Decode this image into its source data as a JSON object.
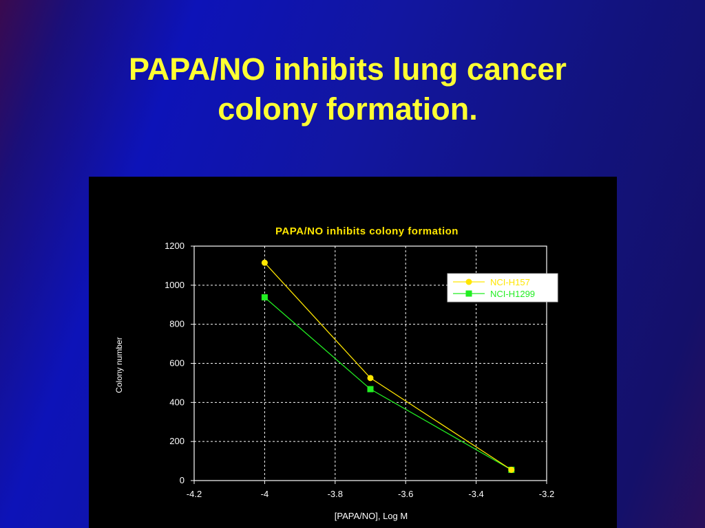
{
  "slide": {
    "title_line1": "PAPA/NO inhibits lung cancer",
    "title_line2": "colony formation."
  },
  "colors": {
    "title": "#ffff33",
    "chart_background": "#000000",
    "series_h157": "#ffe600",
    "series_h1299": "#22ee22",
    "axis_text": "#ffffff"
  },
  "chart_data": {
    "type": "line",
    "title": "PAPA/NO inhibits colony formation",
    "xlabel": "[PAPA/NO], Log M",
    "ylabel": "Colony number",
    "xlim": [
      -4.2,
      -3.2
    ],
    "ylim": [
      0,
      1200
    ],
    "xticks": [
      "-4.2",
      "-4",
      "-3.8",
      "-3.6",
      "-3.4",
      "-3.2"
    ],
    "yticks": [
      "0",
      "200",
      "400",
      "600",
      "800",
      "1000",
      "1200"
    ],
    "grid": true,
    "legend_position": "top-right",
    "series": [
      {
        "name": "NCI-H157",
        "marker": "circle",
        "x": [
          -4,
          -3.7,
          -3.3
        ],
        "y": [
          1115,
          525,
          55
        ]
      },
      {
        "name": "NCI-H1299",
        "marker": "square",
        "x": [
          -4,
          -3.7,
          -3.3
        ],
        "y": [
          938,
          468,
          55
        ]
      }
    ]
  }
}
